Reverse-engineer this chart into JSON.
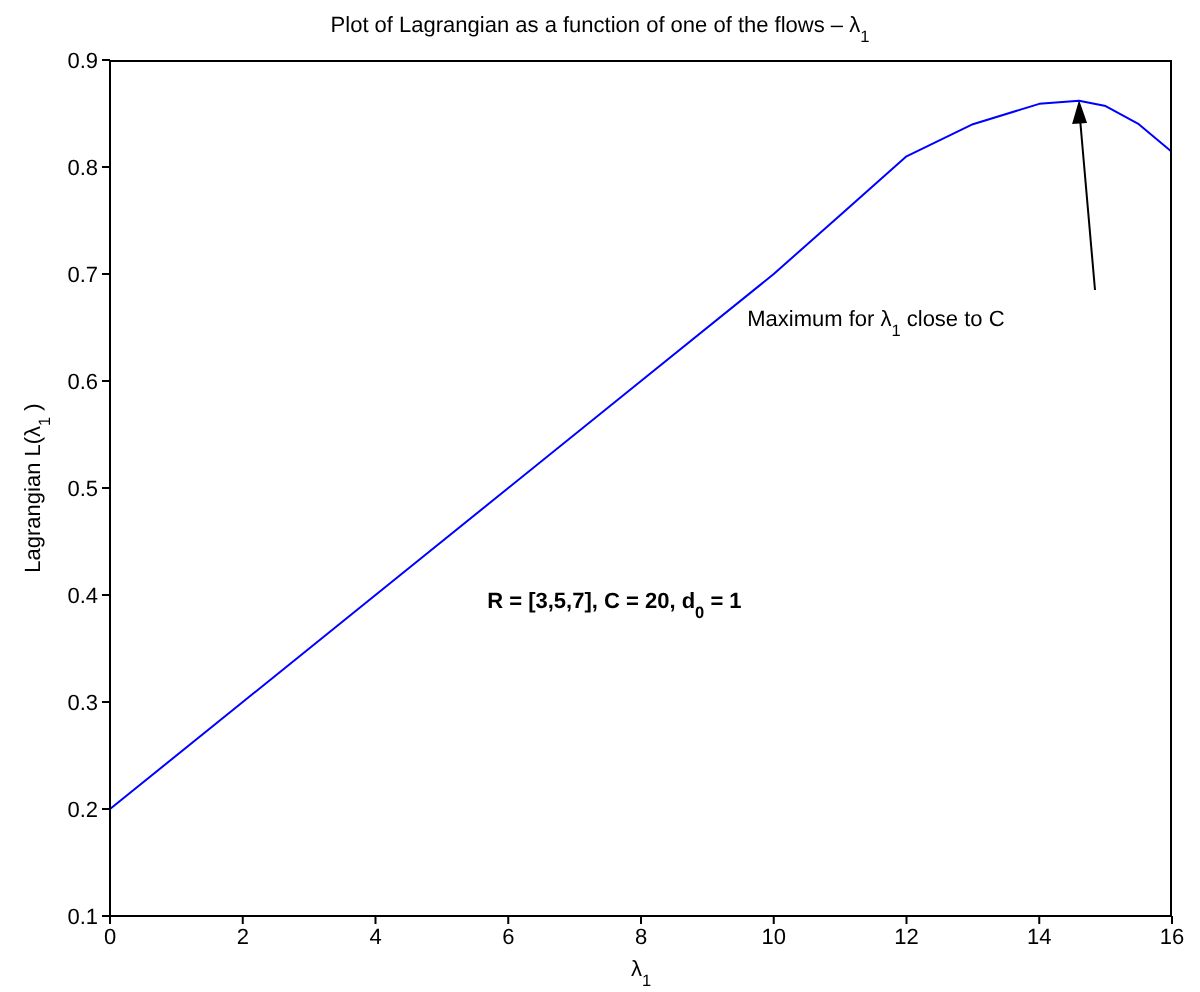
{
  "chart_data": {
    "type": "line",
    "title": "Plot of Lagrangian as a function of one of the flows – λ$_{1}$",
    "xlabel": "λ$_{1}$",
    "ylabel": "Lagrangian L(λ$_{1}$)",
    "x": [
      0,
      2,
      4,
      6,
      8,
      10,
      11,
      12,
      13,
      14,
      14.6,
      15,
      15.5,
      16
    ],
    "series": [
      {
        "color": "#0000ff",
        "values": [
          0.2,
          0.3,
          0.4,
          0.5,
          0.6,
          0.7,
          0.755,
          0.81,
          0.84,
          0.859,
          0.862,
          0.857,
          0.84,
          0.814
        ]
      }
    ],
    "xlim": [
      0,
      16
    ],
    "xticks": [
      0,
      2,
      4,
      6,
      8,
      10,
      12,
      14,
      16
    ],
    "ylim": [
      0.1,
      0.9
    ],
    "yticks": [
      0.1,
      0.2,
      0.3,
      0.4,
      0.5,
      0.6,
      0.7,
      0.8,
      0.9
    ],
    "annotations": [
      "Maximum for λ$_{1}$ close to C",
      "R = [3,5,7], C = 20, d$_{0}$ = 1"
    ]
  }
}
